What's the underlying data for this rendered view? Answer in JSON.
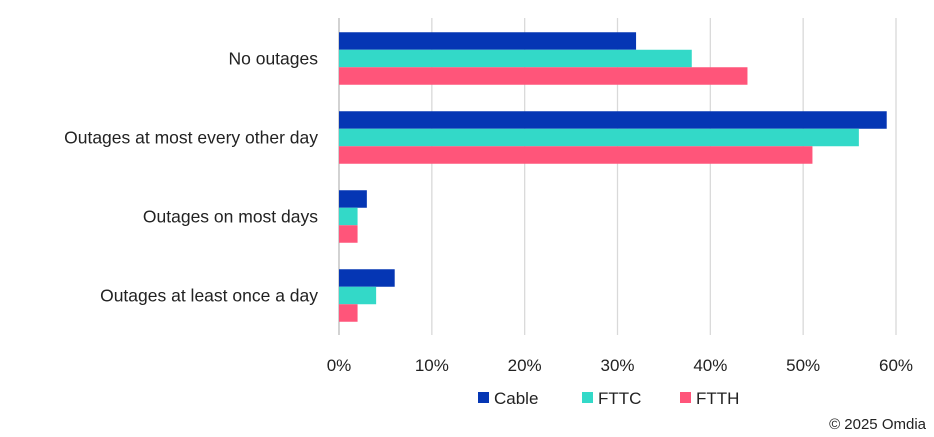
{
  "chart_data": {
    "type": "bar",
    "orientation": "horizontal",
    "categories": [
      "No outages",
      "Outages at most every other day",
      "Outages on most days",
      "Outages at least once a day"
    ],
    "series": [
      {
        "name": "Cable",
        "color": "#0536B4",
        "values": [
          32,
          59,
          3,
          6
        ]
      },
      {
        "name": "FTTC",
        "color": "#33D9C8",
        "values": [
          38,
          56,
          2,
          4
        ]
      },
      {
        "name": "FTTH",
        "color": "#FF557A",
        "values": [
          44,
          51,
          2,
          2
        ]
      }
    ],
    "xlim": [
      0,
      60
    ],
    "xticks": [
      "0%",
      "10%",
      "20%",
      "30%",
      "40%",
      "50%",
      "60%"
    ],
    "grid": true,
    "legend": "bottom",
    "xlabel": "",
    "ylabel": ""
  },
  "footer": {
    "copyright": "© 2025 Omdia"
  }
}
